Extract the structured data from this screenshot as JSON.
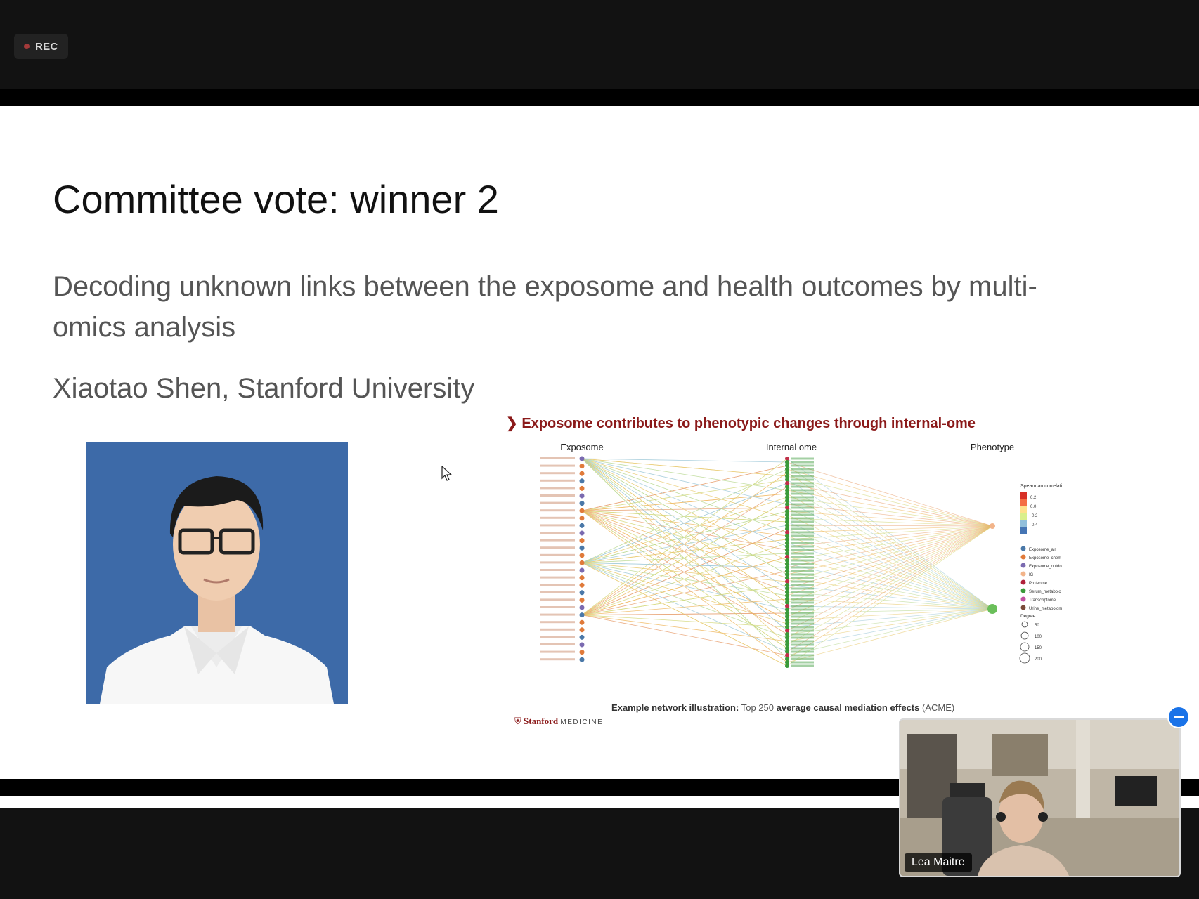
{
  "recording": {
    "label": "REC"
  },
  "slide": {
    "title": "Committee vote: winner 2",
    "subtitle": "Decoding unknown links between the exposome and health outcomes by multi-omics analysis",
    "author": "Xiaotao Shen, Stanford University"
  },
  "figure": {
    "heading": "Exposome contributes to phenotypic changes through internal-ome",
    "columns": [
      "Exposome",
      "Internal ome",
      "Phenotype"
    ],
    "caption_bold": "Example network illustration:",
    "caption_rest": "Top 250",
    "caption_bold2": "average causal mediation effects",
    "caption_end": "(ACME)",
    "logo": "Stanford",
    "logo_sub": "MEDICINE",
    "legend_title": "Spearman correlati",
    "legend_ticks": [
      "0.2",
      "0.0",
      "-0.2",
      "-0.4"
    ],
    "categories": [
      "Exposome_air",
      "Exposome_chem",
      "Exposome_outdo",
      "IG",
      "Proteome",
      "Serum_metabolo",
      "Transcriptome",
      "Urine_metabolom"
    ],
    "degree_title": "Degree",
    "degree_values": [
      "50",
      "100",
      "150",
      "200"
    ]
  },
  "participant": {
    "name": "Lea Maitre"
  },
  "colors": {
    "accent": "#1a73e8",
    "rec_dot": "#a33a3a",
    "figure_heading": "#8b1a1a"
  }
}
